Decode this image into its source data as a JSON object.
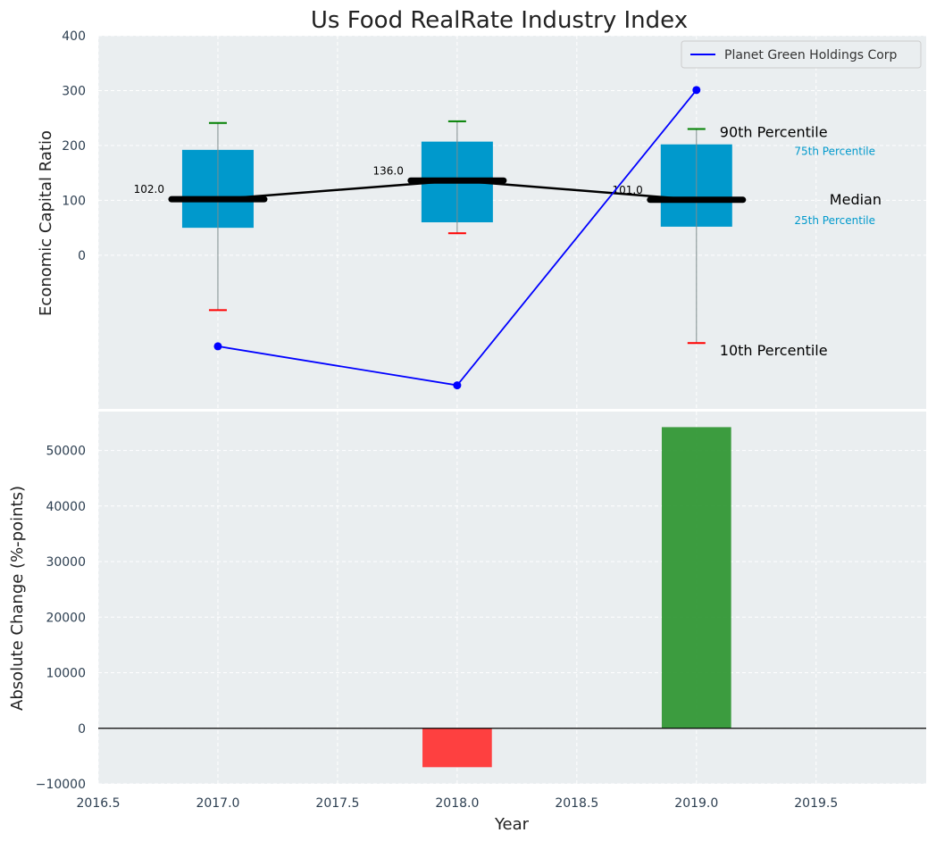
{
  "chart_data": [
    {
      "type": "box",
      "title": "Us Food RealRate Industry Index",
      "ylabel": "Economic Capital Ratio",
      "ylim": [
        -280,
        400
      ],
      "yticks": [
        0,
        100,
        200,
        300,
        400
      ],
      "categories": [
        2017.0,
        2018.0,
        2019.0
      ],
      "boxes": [
        {
          "x": 2017.0,
          "p10": -100,
          "p25": 50,
          "median": 102.0,
          "p75": 192,
          "p90": 241
        },
        {
          "x": 2018.0,
          "p10": 40,
          "p25": 60,
          "median": 136.0,
          "p75": 207,
          "p90": 244
        },
        {
          "x": 2019.0,
          "p10": -160,
          "p25": 52,
          "median": 101.0,
          "p75": 202,
          "p90": 230
        }
      ],
      "median_labels": [
        "102.0",
        "136.0",
        "101.0"
      ],
      "series": [
        {
          "name": "Planet Green Holdings Corp",
          "x": [
            2017.0,
            2018.0,
            2019.0
          ],
          "values": [
            -166,
            -237,
            301
          ],
          "color": "#0000ff"
        }
      ],
      "legend_position": "top-right",
      "annotations": {
        "p90": "90th Percentile",
        "p75": "75th Percentile",
        "median": "Median",
        "p25": "25th Percentile",
        "p10": "10th Percentile"
      },
      "grid": true
    },
    {
      "type": "bar",
      "xlabel": "Year",
      "ylabel": "Absolute Change (%-points)",
      "ylim": [
        -10000,
        57000
      ],
      "yticks": [
        -10000,
        0,
        10000,
        20000,
        30000,
        40000,
        50000
      ],
      "ytick_labels": [
        "−10000",
        "0",
        "10000",
        "20000",
        "30000",
        "40000",
        "50000"
      ],
      "xlim": [
        2016.5,
        2019.96
      ],
      "xticks": [
        2016.5,
        2017.0,
        2017.5,
        2018.0,
        2018.5,
        2019.0,
        2019.5
      ],
      "xtick_labels": [
        "2016.5",
        "2017.0",
        "2017.5",
        "2018.0",
        "2018.5",
        "2019.0",
        "2019.5"
      ],
      "x": [
        2018.0,
        2019.0
      ],
      "values": [
        -7000,
        54200
      ],
      "colors": [
        "#ff3333",
        "#2e9632"
      ],
      "grid": true
    }
  ]
}
